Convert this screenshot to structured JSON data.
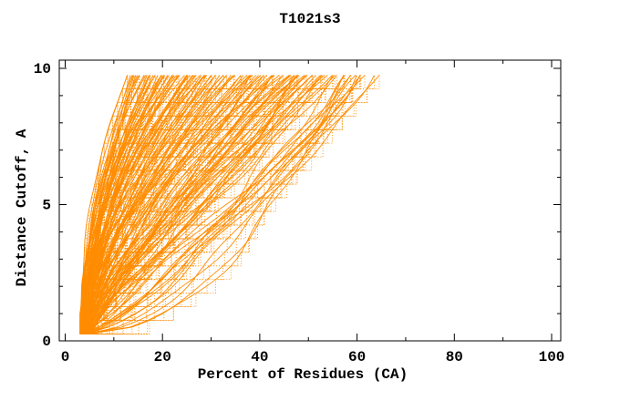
{
  "title": "T1021s3",
  "chart_data": {
    "type": "line",
    "title": "T1021s3",
    "xlabel": "Percent of Residues (CA)",
    "ylabel": "Distance Cutoff, A",
    "x_ticks_major": [
      0,
      20,
      40,
      60,
      80,
      100
    ],
    "x_ticks_minor": [
      10,
      30,
      50,
      70,
      90
    ],
    "y_ticks_major": [
      0,
      5,
      10
    ],
    "y_ticks_minor": [
      1,
      2,
      3,
      4,
      6,
      7,
      8,
      9
    ],
    "xlim": [
      -1.2,
      101.9
    ],
    "ylim": [
      0,
      10.3
    ],
    "grid": false,
    "legend": null,
    "background_color": "#FFFFFF",
    "axis_color": "#000000",
    "series_color": "#FF8C00",
    "description": "Ensemble of ~130 model-accuracy curves for CASP target T1021s3: percent of CA residues (x) within a distance cutoff in Angstroms (y). All curves converge near 3-5% at cutoff 0.25 A and fan out to 12-63% at cutoff 9.75 A; drawn as orange staircase curves with dotted horizontal steps every 0.5 A.",
    "cutoff_start": 0.25,
    "cutoff_end": 9.75,
    "cutoff_step": 0.5,
    "start_percent_range": [
      3.2,
      5.3
    ],
    "curve_final_percents": [
      12.5,
      13,
      13.4,
      13.8,
      14.2,
      14.6,
      15,
      15.3,
      15.7,
      16,
      16.4,
      16.8,
      17.1,
      17.5,
      17.9,
      18.2,
      18.6,
      19,
      19.3,
      19.7,
      20,
      20.4,
      20.8,
      21.1,
      21.5,
      21.9,
      22.2,
      22.6,
      23,
      23.3,
      23.7,
      24,
      24.4,
      24.8,
      25.1,
      25.5,
      25.9,
      26.2,
      26.6,
      27,
      27.3,
      27.7,
      28,
      28.4,
      28.8,
      29.1,
      29.5,
      29.9,
      14,
      16.2,
      18.4,
      20.6,
      22.4,
      24.6,
      26.8,
      30.3,
      30.7,
      31.1,
      31.5,
      32,
      32.4,
      32.8,
      33.2,
      33.6,
      34,
      34.4,
      34.9,
      35.3,
      35.7,
      36.1,
      36.5,
      37,
      37.4,
      37.8,
      38.2,
      38.6,
      39,
      39.5,
      39.9,
      40.3,
      40.7,
      41.1,
      41.6,
      42,
      42.4,
      42.8,
      43.2,
      43.6,
      44.1,
      44.5,
      44.9,
      45.3,
      45.7,
      46.1,
      46.6,
      47,
      47.4,
      47.8,
      48.1,
      48.4,
      48.8,
      49.2,
      49.6,
      50,
      50.5,
      51,
      51.5,
      52,
      52.5,
      53,
      53.5,
      54,
      54.5,
      55,
      55.5,
      56,
      56.5,
      57,
      57.5,
      58,
      58.5,
      59,
      59.4,
      59.7,
      60,
      60.6,
      61.3,
      62,
      62.7,
      63.4
    ]
  },
  "plot_geometry_note": "x axis 0-100 percent, y axis 0-10 Angstrom, box frame with inward ticks on all four sides"
}
